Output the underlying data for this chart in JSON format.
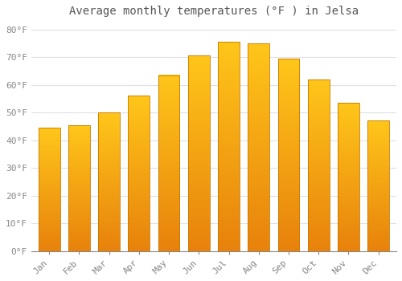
{
  "title": "Average monthly temperatures (°F ) in Jelsa",
  "months": [
    "Jan",
    "Feb",
    "Mar",
    "Apr",
    "May",
    "Jun",
    "Jul",
    "Aug",
    "Sep",
    "Oct",
    "Nov",
    "Dec"
  ],
  "values": [
    44.5,
    45.5,
    50.0,
    56.0,
    63.5,
    70.5,
    75.5,
    75.0,
    69.5,
    62.0,
    53.5,
    47.0
  ],
  "bar_color_top": "#FFC61A",
  "bar_color_bottom": "#E8820C",
  "bar_edge_color": "#C87800",
  "background_color": "#FFFFFF",
  "plot_bg_color": "#FFFFFF",
  "ytick_labels": [
    "0°F",
    "10°F",
    "20°F",
    "30°F",
    "40°F",
    "50°F",
    "60°F",
    "70°F",
    "80°F"
  ],
  "ytick_values": [
    0,
    10,
    20,
    30,
    40,
    50,
    60,
    70,
    80
  ],
  "ylim": [
    0,
    83
  ],
  "grid_color": "#E0E0E0",
  "title_fontsize": 10,
  "tick_fontsize": 8,
  "tick_color": "#888888",
  "title_color": "#555555",
  "font_family": "monospace"
}
